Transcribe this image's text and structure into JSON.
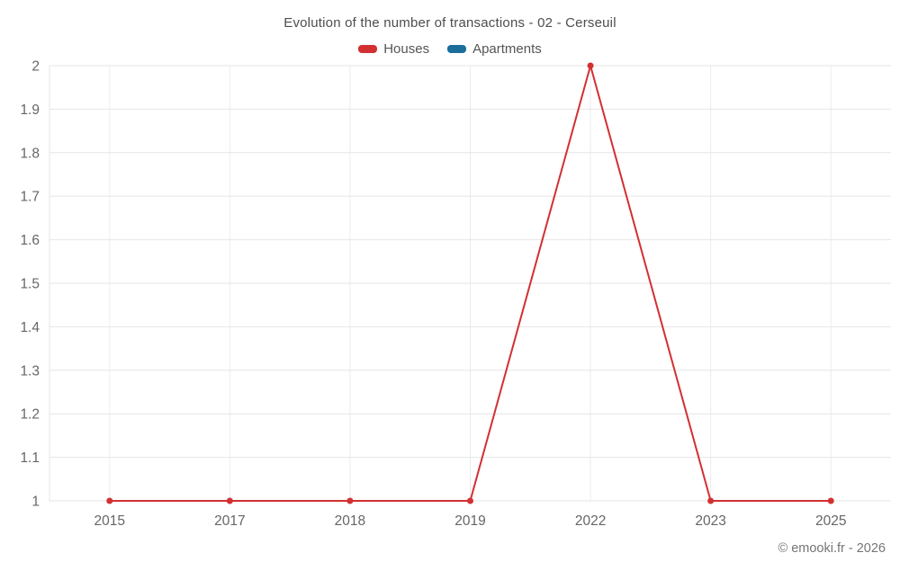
{
  "chart_data": {
    "type": "line",
    "title": "Evolution of the number of transactions - 02 - Cerseuil",
    "categories": [
      "2015",
      "2017",
      "2018",
      "2019",
      "2022",
      "2023",
      "2025"
    ],
    "series": [
      {
        "name": "Houses",
        "color": "#d23031",
        "values": [
          1,
          1,
          1,
          1,
          2,
          1,
          1
        ]
      },
      {
        "name": "Apartments",
        "color": "#1b6d9c",
        "values": []
      }
    ],
    "ylim": [
      1,
      2
    ],
    "y_tick_labels": [
      "2",
      "1.9",
      "1.8",
      "1.7",
      "1.6",
      "1.5",
      "1.4",
      "1.3",
      "1.2",
      "1.1",
      "1"
    ],
    "xlabel": "",
    "ylabel": "",
    "grid": true,
    "legend_position": "top",
    "grid_color_h": "#e6e6e6",
    "grid_color_v": "#ececec",
    "axis_text_color": "#666666",
    "title_color": "#4d4d4d"
  },
  "footer": {
    "copyright": "© emooki.fr - 2026"
  }
}
